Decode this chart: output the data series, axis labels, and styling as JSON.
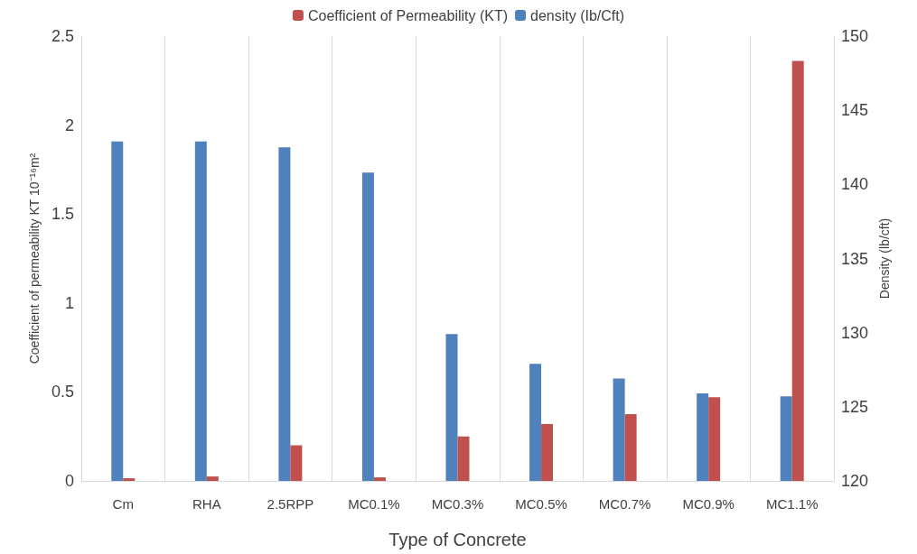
{
  "chart_data": {
    "type": "bar",
    "xlabel": "Type of Concrete",
    "ylabel": "Coefficient of permeability KT 10⁻¹⁶m²",
    "y2label": "Density (lb/cft)",
    "categories": [
      "Cm",
      "RHA",
      "2.5RPP",
      "MC0.1%",
      "MC0.3%",
      "MC0.5%",
      "MC0.7%",
      "MC0.9%",
      "MC1.1%"
    ],
    "series": [
      {
        "name": "density (Ib/Cft)",
        "color": "#4f81bd",
        "axis": "y2",
        "values": [
          142.9,
          142.9,
          142.5,
          140.8,
          129.9,
          127.9,
          126.9,
          125.9,
          125.7
        ]
      },
      {
        "name": "Coefficient of Permeability (KT)",
        "color": "#c0504d",
        "values": [
          0.015,
          0.025,
          0.2,
          0.02,
          0.25,
          0.32,
          0.375,
          0.47,
          2.36
        ]
      }
    ],
    "ylim": [
      0,
      2.5
    ],
    "yticks": [
      0,
      0.5,
      1,
      1.5,
      2,
      2.5
    ],
    "y2lim": [
      120,
      150
    ],
    "y2ticks": [
      120,
      125,
      130,
      135,
      140,
      145,
      150
    ],
    "grid": "x",
    "legend": "top"
  }
}
